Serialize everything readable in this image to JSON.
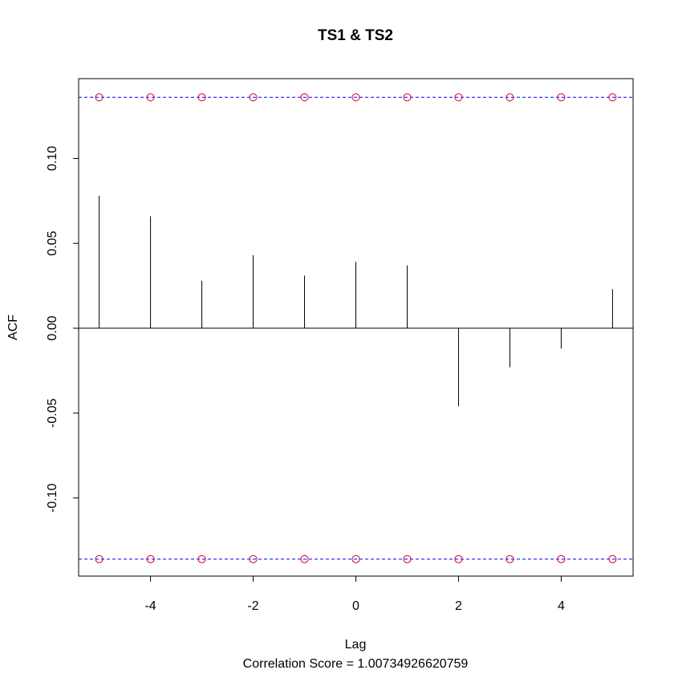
{
  "chart_data": {
    "type": "bar",
    "title": "TS1 & TS2",
    "xlabel": "Lag",
    "ylabel": "ACF",
    "subtitle": "Correlation Score = 1.00734926620759",
    "xlim": [
      -5.4,
      5.4
    ],
    "ylim": [
      -0.146,
      0.147
    ],
    "x_ticks": [
      -4,
      -2,
      0,
      2,
      4
    ],
    "y_ticks": [
      -0.1,
      -0.05,
      0.0,
      0.05,
      0.1
    ],
    "x_tick_labels": [
      "-4",
      "-2",
      "0",
      "2",
      "4"
    ],
    "y_tick_labels": [
      "-0.10",
      "-0.05",
      "0.00",
      "0.05",
      "0.10"
    ],
    "lags": [
      -5,
      -4,
      -3,
      -2,
      -1,
      0,
      1,
      2,
      3,
      4,
      5
    ],
    "values": [
      0.078,
      0.066,
      0.028,
      0.043,
      0.031,
      0.039,
      0.037,
      -0.046,
      -0.023,
      -0.012,
      0.023
    ],
    "confidence_bound": 0.136,
    "bound_marker_lags": [
      -5,
      -4,
      -3,
      -2,
      -1,
      0,
      1,
      2,
      3,
      4,
      5
    ],
    "colors": {
      "bars": "#000000",
      "bound_line": "#0000ff",
      "bound_markers": "#cc0033"
    },
    "grid": false,
    "legend": "none"
  }
}
